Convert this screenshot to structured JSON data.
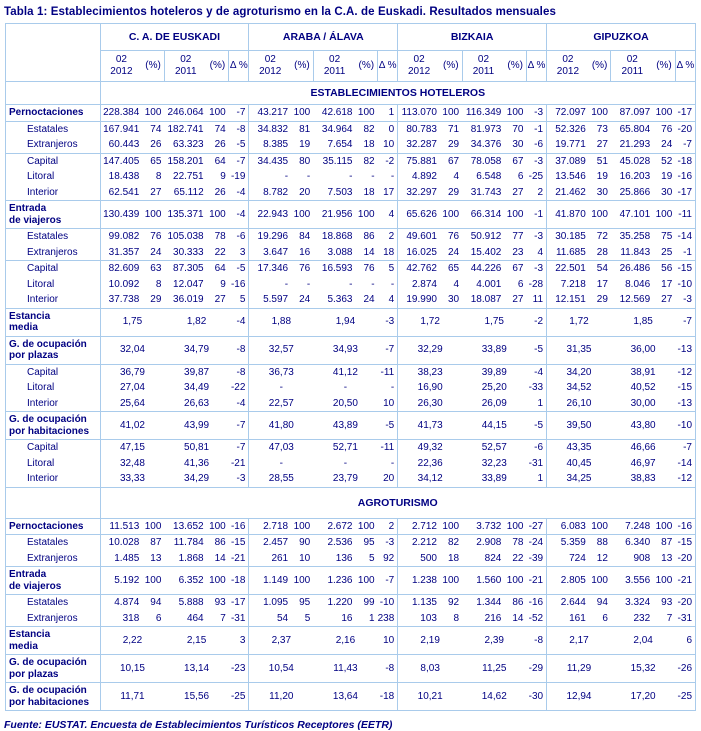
{
  "title": "Tabla 1: Establecimientos hoteleros y de agroturismo en la C.A. de Euskadi. Resultados mensuales",
  "source": "Fuente: EUSTAT. Encuesta de Establecimientos Turísticos Receptores (EETR)",
  "colors": {
    "text": "#000082",
    "border": "#a9cbeb",
    "background": "#ffffff"
  },
  "table": {
    "groups": [
      "C. A.  DE EUSKADI",
      "ARABA / ÁLAVA",
      "BIZKAIA",
      "GIPUZKOA"
    ],
    "subheaders": [
      "02\n2012",
      "(%)",
      "02\n2011",
      "(%)",
      "Δ %"
    ],
    "sections": [
      {
        "band": "ESTABLECIMIENTOS HOTELEROS",
        "tall_band": false,
        "rows": [
          {
            "label": "Pernoctaciones",
            "bold": true,
            "indent": false,
            "merged": false,
            "rule": true,
            "cells": [
              "228.384",
              "100",
              "246.064",
              "100",
              "-7",
              "43.217",
              "100",
              "42.618",
              "100",
              "1",
              "113.070",
              "100",
              "116.349",
              "100",
              "-3",
              "72.097",
              "100",
              "87.097",
              "100",
              "-17"
            ]
          },
          {
            "label": "Estatales",
            "bold": false,
            "indent": true,
            "merged": false,
            "rule": false,
            "cells": [
              "167.941",
              "74",
              "182.741",
              "74",
              "-8",
              "34.832",
              "81",
              "34.964",
              "82",
              "0",
              "80.783",
              "71",
              "81.973",
              "70",
              "-1",
              "52.326",
              "73",
              "65.804",
              "76",
              "-20"
            ]
          },
          {
            "label": "Extranjeros",
            "bold": false,
            "indent": true,
            "merged": false,
            "rule": true,
            "cells": [
              "60.443",
              "26",
              "63.323",
              "26",
              "-5",
              "8.385",
              "19",
              "7.654",
              "18",
              "10",
              "32.287",
              "29",
              "34.376",
              "30",
              "-6",
              "19.771",
              "27",
              "21.293",
              "24",
              "-7"
            ]
          },
          {
            "label": "Capital",
            "bold": false,
            "indent": true,
            "merged": false,
            "rule": false,
            "cells": [
              "147.405",
              "65",
              "158.201",
              "64",
              "-7",
              "34.435",
              "80",
              "35.115",
              "82",
              "-2",
              "75.881",
              "67",
              "78.058",
              "67",
              "-3",
              "37.089",
              "51",
              "45.028",
              "52",
              "-18"
            ]
          },
          {
            "label": "Litoral",
            "bold": false,
            "indent": true,
            "merged": false,
            "rule": false,
            "cells": [
              "18.438",
              "8",
              "22.751",
              "9",
              "-19",
              "-",
              "-",
              "-",
              "-",
              "-",
              "4.892",
              "4",
              "6.548",
              "6",
              "-25",
              "13.546",
              "19",
              "16.203",
              "19",
              "-16"
            ]
          },
          {
            "label": "Interior",
            "bold": false,
            "indent": true,
            "merged": false,
            "rule": true,
            "cells": [
              "62.541",
              "27",
              "65.112",
              "26",
              "-4",
              "8.782",
              "20",
              "7.503",
              "18",
              "17",
              "32.297",
              "29",
              "31.743",
              "27",
              "2",
              "21.462",
              "30",
              "25.866",
              "30",
              "-17"
            ]
          },
          {
            "label": "Entrada\nde viajeros",
            "bold": true,
            "indent": false,
            "merged": false,
            "rule": true,
            "cells": [
              "130.439",
              "100",
              "135.371",
              "100",
              "-4",
              "22.943",
              "100",
              "21.956",
              "100",
              "4",
              "65.626",
              "100",
              "66.314",
              "100",
              "-1",
              "41.870",
              "100",
              "47.101",
              "100",
              "-11"
            ]
          },
          {
            "label": "Estatales",
            "bold": false,
            "indent": true,
            "merged": false,
            "rule": false,
            "cells": [
              "99.082",
              "76",
              "105.038",
              "78",
              "-6",
              "19.296",
              "84",
              "18.868",
              "86",
              "2",
              "49.601",
              "76",
              "50.912",
              "77",
              "-3",
              "30.185",
              "72",
              "35.258",
              "75",
              "-14"
            ]
          },
          {
            "label": "Extranjeros",
            "bold": false,
            "indent": true,
            "merged": false,
            "rule": true,
            "cells": [
              "31.357",
              "24",
              "30.333",
              "22",
              "3",
              "3.647",
              "16",
              "3.088",
              "14",
              "18",
              "16.025",
              "24",
              "15.402",
              "23",
              "4",
              "11.685",
              "28",
              "11.843",
              "25",
              "-1"
            ]
          },
          {
            "label": "Capital",
            "bold": false,
            "indent": true,
            "merged": false,
            "rule": false,
            "cells": [
              "82.609",
              "63",
              "87.305",
              "64",
              "-5",
              "17.346",
              "76",
              "16.593",
              "76",
              "5",
              "42.762",
              "65",
              "44.226",
              "67",
              "-3",
              "22.501",
              "54",
              "26.486",
              "56",
              "-15"
            ]
          },
          {
            "label": "Litoral",
            "bold": false,
            "indent": true,
            "merged": false,
            "rule": false,
            "cells": [
              "10.092",
              "8",
              "12.047",
              "9",
              "-16",
              "-",
              "-",
              "-",
              "-",
              "-",
              "2.874",
              "4",
              "4.001",
              "6",
              "-28",
              "7.218",
              "17",
              "8.046",
              "17",
              "-10"
            ]
          },
          {
            "label": "Interior",
            "bold": false,
            "indent": true,
            "merged": false,
            "rule": true,
            "cells": [
              "37.738",
              "29",
              "36.019",
              "27",
              "5",
              "5.597",
              "24",
              "5.363",
              "24",
              "4",
              "19.990",
              "30",
              "18.087",
              "27",
              "11",
              "12.151",
              "29",
              "12.569",
              "27",
              "-3"
            ]
          },
          {
            "label": "Estancia\nmedia",
            "bold": true,
            "indent": false,
            "merged": true,
            "rule": true,
            "cells": [
              "1,75",
              "1,82",
              "-4",
              "1,88",
              "1,94",
              "-3",
              "1,72",
              "1,75",
              "-2",
              "1,72",
              "1,85",
              "-7"
            ]
          },
          {
            "label": "G. de ocupación\npor plazas",
            "bold": true,
            "indent": false,
            "merged": true,
            "rule": true,
            "cells": [
              "32,04",
              "34,79",
              "-8",
              "32,57",
              "34,93",
              "-7",
              "32,29",
              "33,89",
              "-5",
              "31,35",
              "36,00",
              "-13"
            ]
          },
          {
            "label": "Capital",
            "bold": false,
            "indent": true,
            "merged": true,
            "rule": false,
            "cells": [
              "36,79",
              "39,87",
              "-8",
              "36,73",
              "41,12",
              "-11",
              "38,23",
              "39,89",
              "-4",
              "34,20",
              "38,91",
              "-12"
            ]
          },
          {
            "label": "Litoral",
            "bold": false,
            "indent": true,
            "merged": true,
            "rule": false,
            "cells": [
              "27,04",
              "34,49",
              "-22",
              "-",
              "-",
              "-",
              "16,90",
              "25,20",
              "-33",
              "34,52",
              "40,52",
              "-15"
            ]
          },
          {
            "label": "Interior",
            "bold": false,
            "indent": true,
            "merged": true,
            "rule": true,
            "cells": [
              "25,64",
              "26,63",
              "-4",
              "22,57",
              "20,50",
              "10",
              "26,30",
              "26,09",
              "1",
              "26,10",
              "30,00",
              "-13"
            ]
          },
          {
            "label": "G. de ocupación\npor habitaciones",
            "bold": true,
            "indent": false,
            "merged": true,
            "rule": true,
            "cells": [
              "41,02",
              "43,99",
              "-7",
              "41,80",
              "43,89",
              "-5",
              "41,73",
              "44,15",
              "-5",
              "39,50",
              "43,80",
              "-10"
            ]
          },
          {
            "label": "Capital",
            "bold": false,
            "indent": true,
            "merged": true,
            "rule": false,
            "cells": [
              "47,15",
              "50,81",
              "-7",
              "47,03",
              "52,71",
              "-11",
              "49,32",
              "52,57",
              "-6",
              "43,35",
              "46,66",
              "-7"
            ]
          },
          {
            "label": "Litoral",
            "bold": false,
            "indent": true,
            "merged": true,
            "rule": false,
            "cells": [
              "32,48",
              "41,36",
              "-21",
              "-",
              "-",
              "-",
              "22,36",
              "32,23",
              "-31",
              "40,45",
              "46,97",
              "-14"
            ]
          },
          {
            "label": "Interior",
            "bold": false,
            "indent": true,
            "merged": true,
            "rule": true,
            "cells": [
              "33,33",
              "34,29",
              "-3",
              "28,55",
              "23,79",
              "20",
              "34,12",
              "33,89",
              "1",
              "34,25",
              "38,83",
              "-12"
            ]
          }
        ]
      },
      {
        "band": "AGROTURISMO",
        "tall_band": true,
        "rows": [
          {
            "label": "Pernoctaciones",
            "bold": true,
            "indent": false,
            "merged": false,
            "rule": true,
            "cells": [
              "11.513",
              "100",
              "13.652",
              "100",
              "-16",
              "2.718",
              "100",
              "2.672",
              "100",
              "2",
              "2.712",
              "100",
              "3.732",
              "100",
              "-27",
              "6.083",
              "100",
              "7.248",
              "100",
              "-16"
            ]
          },
          {
            "label": "Estatales",
            "bold": false,
            "indent": true,
            "merged": false,
            "rule": false,
            "cells": [
              "10.028",
              "87",
              "11.784",
              "86",
              "-15",
              "2.457",
              "90",
              "2.536",
              "95",
              "-3",
              "2.212",
              "82",
              "2.908",
              "78",
              "-24",
              "5.359",
              "88",
              "6.340",
              "87",
              "-15"
            ]
          },
          {
            "label": "Extranjeros",
            "bold": false,
            "indent": true,
            "merged": false,
            "rule": true,
            "cells": [
              "1.485",
              "13",
              "1.868",
              "14",
              "-21",
              "261",
              "10",
              "136",
              "5",
              "92",
              "500",
              "18",
              "824",
              "22",
              "-39",
              "724",
              "12",
              "908",
              "13",
              "-20"
            ]
          },
          {
            "label": "Entrada\nde viajeros",
            "bold": true,
            "indent": false,
            "merged": false,
            "rule": true,
            "cells": [
              "5.192",
              "100",
              "6.352",
              "100",
              "-18",
              "1.149",
              "100",
              "1.236",
              "100",
              "-7",
              "1.238",
              "100",
              "1.560",
              "100",
              "-21",
              "2.805",
              "100",
              "3.556",
              "100",
              "-21"
            ]
          },
          {
            "label": "Estatales",
            "bold": false,
            "indent": true,
            "merged": false,
            "rule": false,
            "cells": [
              "4.874",
              "94",
              "5.888",
              "93",
              "-17",
              "1.095",
              "95",
              "1.220",
              "99",
              "-10",
              "1.135",
              "92",
              "1.344",
              "86",
              "-16",
              "2.644",
              "94",
              "3.324",
              "93",
              "-20"
            ]
          },
          {
            "label": "Extranjeros",
            "bold": false,
            "indent": true,
            "merged": false,
            "rule": true,
            "cells": [
              "318",
              "6",
              "464",
              "7",
              "-31",
              "54",
              "5",
              "16",
              "1",
              "238",
              "103",
              "8",
              "216",
              "14",
              "-52",
              "161",
              "6",
              "232",
              "7",
              "-31"
            ]
          },
          {
            "label": "Estancia\nmedia",
            "bold": true,
            "indent": false,
            "merged": true,
            "rule": true,
            "cells": [
              "2,22",
              "2,15",
              "3",
              "2,37",
              "2,16",
              "10",
              "2,19",
              "2,39",
              "-8",
              "2,17",
              "2,04",
              "6"
            ]
          },
          {
            "label": "G. de ocupación\npor plazas",
            "bold": true,
            "indent": false,
            "merged": true,
            "rule": true,
            "cells": [
              "10,15",
              "13,14",
              "-23",
              "10,54",
              "11,43",
              "-8",
              "8,03",
              "11,25",
              "-29",
              "11,29",
              "15,32",
              "-26"
            ]
          },
          {
            "label": "G. de ocupación\npor habitaciones",
            "bold": true,
            "indent": false,
            "merged": true,
            "rule": true,
            "cells": [
              "11,71",
              "15,56",
              "-25",
              "11,20",
              "13,64",
              "-18",
              "10,21",
              "14,62",
              "-30",
              "12,94",
              "17,20",
              "-25"
            ]
          }
        ]
      }
    ]
  }
}
